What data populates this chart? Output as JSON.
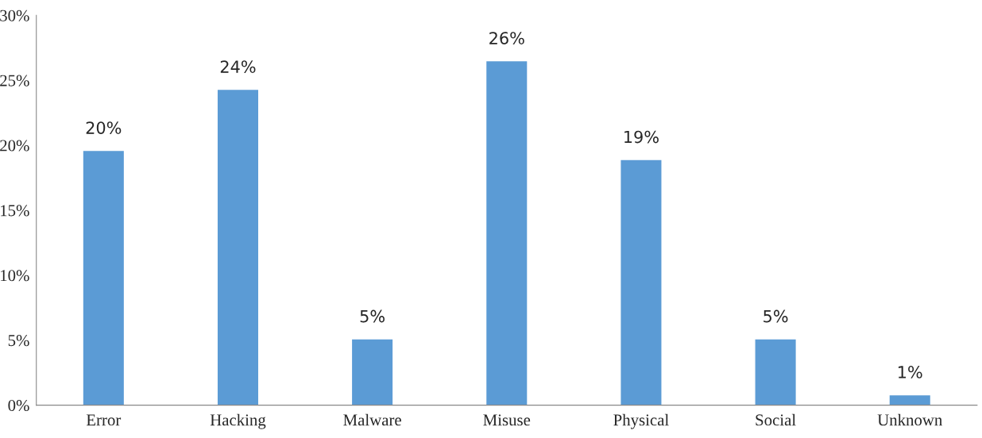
{
  "chart_data": {
    "type": "bar",
    "categories": [
      "Error",
      "Hacking",
      "Malware",
      "Misuse",
      "Physical",
      "Social",
      "Unknown"
    ],
    "values": [
      19.6,
      24.3,
      5.1,
      26.5,
      18.9,
      5.1,
      0.8
    ],
    "value_labels": [
      "20%",
      "24%",
      "5%",
      "26%",
      "19%",
      "5%",
      "1%"
    ],
    "color": "#5b9bd5",
    "ylim": [
      0,
      30
    ],
    "yticks": [
      {
        "value": 0,
        "label": "0%"
      },
      {
        "value": 5,
        "label": "5%"
      },
      {
        "value": 10,
        "label": "10%"
      },
      {
        "value": 15,
        "label": "15%"
      },
      {
        "value": 20,
        "label": "20%"
      },
      {
        "value": 25,
        "label": "25%"
      },
      {
        "value": 30,
        "label": "30%"
      }
    ],
    "grid": false,
    "legend": false
  }
}
